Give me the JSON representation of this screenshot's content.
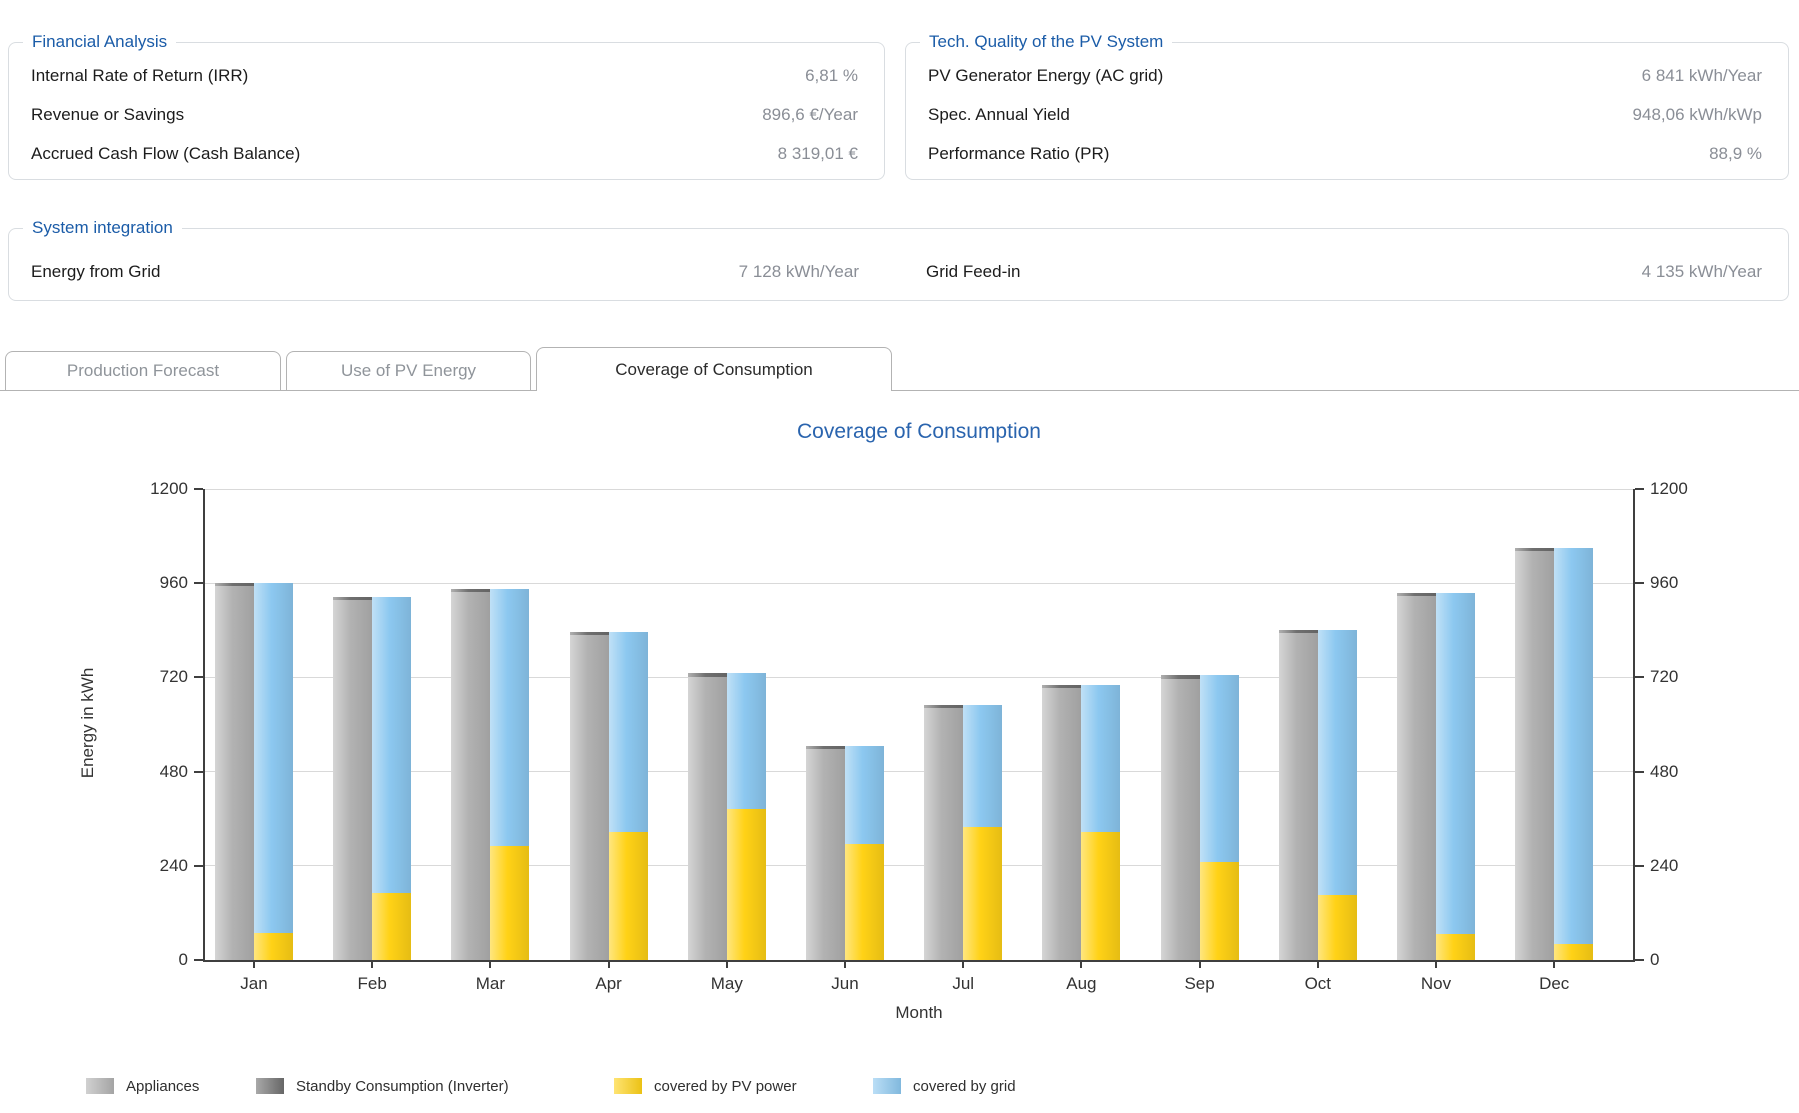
{
  "panels": {
    "financial": {
      "title": "Financial Analysis",
      "rows": [
        {
          "label": "Internal Rate of Return (IRR)",
          "value": "6,81 %"
        },
        {
          "label": "Revenue or Savings",
          "value": "896,6 €/Year"
        },
        {
          "label": "Accrued Cash Flow (Cash Balance)",
          "value": "8 319,01 €"
        }
      ]
    },
    "tech": {
      "title": "Tech. Quality of the PV System",
      "rows": [
        {
          "label": "PV Generator Energy (AC grid)",
          "value": "6 841 kWh/Year"
        },
        {
          "label": "Spec. Annual Yield",
          "value": "948,06 kWh/kWp"
        },
        {
          "label": "Performance Ratio (PR)",
          "value": "88,9 %"
        }
      ]
    },
    "system": {
      "title": "System integration",
      "pairs": [
        {
          "label": "Energy from Grid",
          "value": "7 128 kWh/Year"
        },
        {
          "label": "Grid Feed-in",
          "value": "4 135 kWh/Year"
        }
      ]
    }
  },
  "tabs": [
    {
      "label": "Production Forecast",
      "active": false
    },
    {
      "label": "Use of PV Energy",
      "active": false
    },
    {
      "label": "Coverage of Consumption",
      "active": true
    }
  ],
  "chart_data": {
    "type": "bar",
    "title": "Coverage of Consumption",
    "xlabel": "Month",
    "ylabel": "Energy in kWh",
    "ylim": [
      0,
      1200
    ],
    "yticks": [
      0,
      240,
      480,
      720,
      960,
      1200
    ],
    "grid": true,
    "legend_position": "bottom",
    "bar_layout": "two bars per month: left = Appliances with Standby cap on top; right = covered-by-PV (bottom) stacked with covered-by-grid (top); both bars reach the monthly consumption total",
    "categories": [
      "Jan",
      "Feb",
      "Mar",
      "Apr",
      "May",
      "Jun",
      "Jul",
      "Aug",
      "Sep",
      "Oct",
      "Nov",
      "Dec"
    ],
    "series": [
      {
        "name": "Appliances",
        "color": "#b2b2b2",
        "values": [
          952,
          917,
          937,
          827,
          722,
          537,
          642,
          692,
          717,
          832,
          927,
          1042
        ]
      },
      {
        "name": "Standby Consumption (Inverter)",
        "color": "#6f6f6f",
        "values": [
          8,
          8,
          8,
          8,
          8,
          8,
          8,
          8,
          8,
          8,
          8,
          8
        ]
      },
      {
        "name": "covered by PV power",
        "color": "#ffd216",
        "values": [
          70,
          170,
          290,
          325,
          385,
          295,
          340,
          325,
          250,
          165,
          65,
          40
        ]
      },
      {
        "name": "covered by grid",
        "color": "#8cc8f0",
        "values": [
          890,
          755,
          655,
          510,
          345,
          250,
          310,
          375,
          475,
          675,
          870,
          1010
        ]
      }
    ],
    "monthly_consumption_totals": [
      960,
      925,
      945,
      835,
      730,
      545,
      650,
      700,
      725,
      840,
      935,
      1050
    ]
  }
}
